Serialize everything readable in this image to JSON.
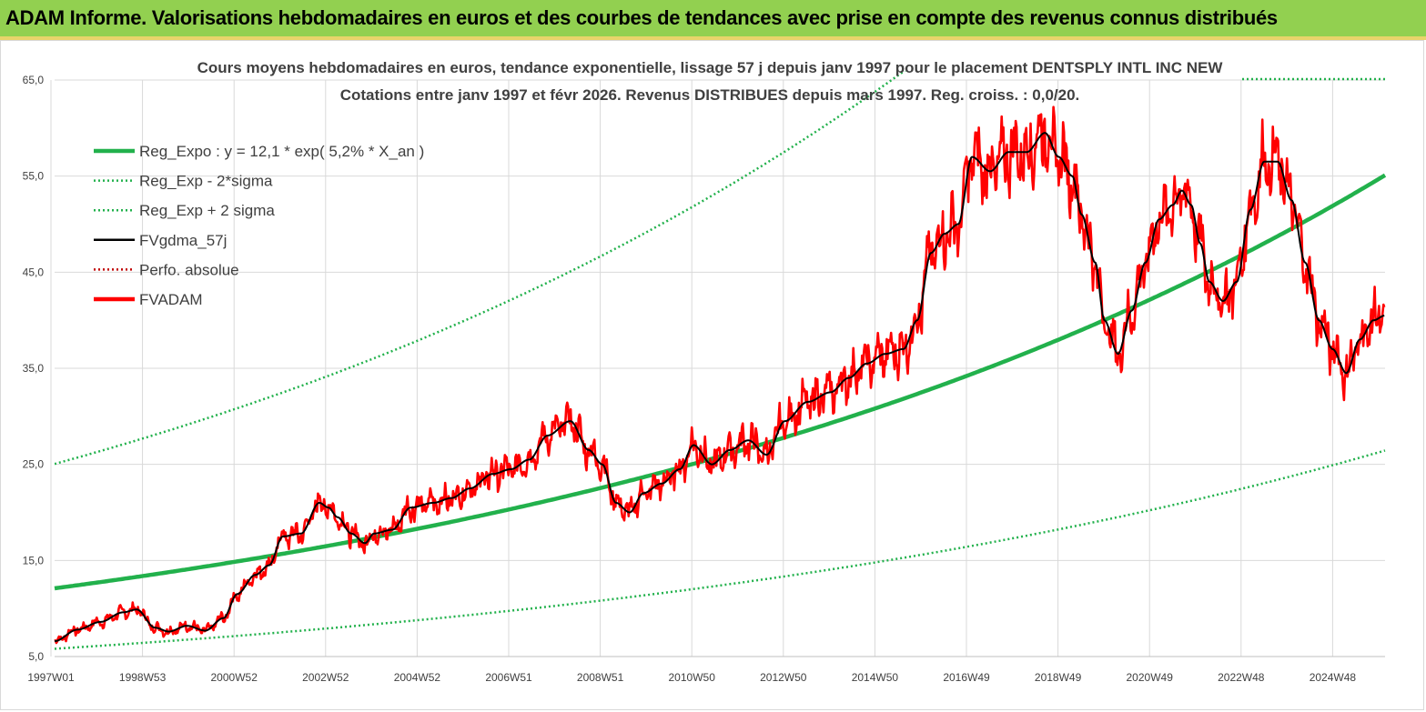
{
  "header": {
    "title": "ADAM Informe. Valorisations hebdomadaires en euros et des courbes de tendances avec prise en compte des revenus connus distribués"
  },
  "chart_data": {
    "type": "line",
    "title_line1": "Cours moyens hebdomadaires en euros, tendance exponentielle, lissage 57 j depuis janv 1997 pour le placement DENTSPLY INTL INC NEW",
    "title_line2": "Cotations entre janv 1997 et févr 2026. Revenus DISTRIBUES depuis mars 1997. Reg. croiss. : 0,0/20.",
    "ylim": [
      5,
      65
    ],
    "yticks": [
      "5,0",
      "15,0",
      "25,0",
      "35,0",
      "45,0",
      "55,0",
      "65,0"
    ],
    "xticks": [
      "1997W01",
      "1998W53",
      "2000W52",
      "2002W52",
      "2004W52",
      "2006W51",
      "2008W51",
      "2010W50",
      "2012W50",
      "2014W50",
      "2016W49",
      "2018W49",
      "2020W49",
      "2022W48",
      "2024W48"
    ],
    "xlim_years": [
      1997.0,
      2026.15
    ],
    "grid": true,
    "legend_position": "top-left",
    "legend": [
      {
        "label": "Reg_Expo : y = 12,1 * exp( 5,2% *  X_an )",
        "color": "#22b14c",
        "style": "solid-thick"
      },
      {
        "label": "Reg_Exp - 2*sigma",
        "color": "#22b14c",
        "style": "dotted"
      },
      {
        "label": "Reg_Exp + 2 sigma",
        "color": "#22b14c",
        "style": "dotted"
      },
      {
        "label": "FVgdma_57j",
        "color": "#000000",
        "style": "solid"
      },
      {
        "label": "Perfo. absolue",
        "color": "#c00000",
        "style": "dotted"
      },
      {
        "label": "FVADAM",
        "color": "#ff0000",
        "style": "solid-thick"
      }
    ],
    "regression": {
      "a": 12.1,
      "rate": 0.052,
      "lower_factor": 0.48,
      "upper_factor": 2.07
    },
    "fvadam_anchors": [
      [
        1997.0,
        6.6
      ],
      [
        1997.5,
        7.8
      ],
      [
        1998.0,
        8.6
      ],
      [
        1998.5,
        9.6
      ],
      [
        1998.8,
        9.9
      ],
      [
        1999.2,
        8.0
      ],
      [
        1999.5,
        7.6
      ],
      [
        1999.9,
        8.2
      ],
      [
        2000.3,
        7.7
      ],
      [
        2000.7,
        9.0
      ],
      [
        2001.0,
        11.5
      ],
      [
        2001.4,
        13.5
      ],
      [
        2001.7,
        14.5
      ],
      [
        2002.0,
        17.5
      ],
      [
        2002.4,
        17.8
      ],
      [
        2002.8,
        21.0
      ],
      [
        2003.0,
        20.5
      ],
      [
        2003.2,
        19.5
      ],
      [
        2003.5,
        17.8
      ],
      [
        2003.8,
        16.8
      ],
      [
        2004.0,
        17.8
      ],
      [
        2004.4,
        18.2
      ],
      [
        2004.8,
        20.5
      ],
      [
        2005.3,
        21.0
      ],
      [
        2005.7,
        21.5
      ],
      [
        2006.1,
        22.5
      ],
      [
        2006.6,
        24.0
      ],
      [
        2007.0,
        24.5
      ],
      [
        2007.4,
        25.5
      ],
      [
        2007.8,
        28.0
      ],
      [
        2008.3,
        29.5
      ],
      [
        2008.7,
        26.5
      ],
      [
        2009.0,
        25.0
      ],
      [
        2009.3,
        21.0
      ],
      [
        2009.6,
        20.0
      ],
      [
        2009.9,
        22.0
      ],
      [
        2010.3,
        23.0
      ],
      [
        2010.7,
        24.5
      ],
      [
        2011.0,
        27.0
      ],
      [
        2011.4,
        25.0
      ],
      [
        2011.8,
        26.5
      ],
      [
        2012.2,
        27.5
      ],
      [
        2012.6,
        26.0
      ],
      [
        2013.0,
        29.5
      ],
      [
        2013.5,
        31.5
      ],
      [
        2014.0,
        32.5
      ],
      [
        2014.4,
        34.0
      ],
      [
        2014.8,
        35.5
      ],
      [
        2015.2,
        36.5
      ],
      [
        2015.6,
        37.0
      ],
      [
        2015.9,
        40.0
      ],
      [
        2016.2,
        47.0
      ],
      [
        2016.5,
        49.0
      ],
      [
        2016.8,
        50.0
      ],
      [
        2017.1,
        57.0
      ],
      [
        2017.5,
        55.5
      ],
      [
        2017.9,
        57.5
      ],
      [
        2018.3,
        57.5
      ],
      [
        2018.7,
        59.5
      ],
      [
        2019.0,
        57.0
      ],
      [
        2019.3,
        55.0
      ],
      [
        2019.5,
        51.0
      ],
      [
        2019.8,
        46.0
      ],
      [
        2020.0,
        40.0
      ],
      [
        2020.3,
        36.5
      ],
      [
        2020.6,
        41.0
      ],
      [
        2020.9,
        46.0
      ],
      [
        2021.2,
        50.5
      ],
      [
        2021.5,
        52.0
      ],
      [
        2021.7,
        53.5
      ],
      [
        2021.9,
        52.0
      ],
      [
        2022.1,
        48.0
      ],
      [
        2022.3,
        44.0
      ],
      [
        2022.6,
        42.0
      ],
      [
        2022.9,
        44.0
      ],
      [
        2023.2,
        51.5
      ],
      [
        2023.5,
        56.5
      ],
      [
        2023.8,
        56.5
      ],
      [
        2024.1,
        52.5
      ],
      [
        2024.4,
        46.0
      ],
      [
        2024.7,
        40.0
      ],
      [
        2025.0,
        37.0
      ],
      [
        2025.3,
        34.5
      ],
      [
        2025.6,
        38.0
      ],
      [
        2025.9,
        40.0
      ],
      [
        2026.15,
        40.5
      ]
    ],
    "fvadam_anchors_late": [
      [
        2026.15,
        40.5
      ]
    ]
  }
}
